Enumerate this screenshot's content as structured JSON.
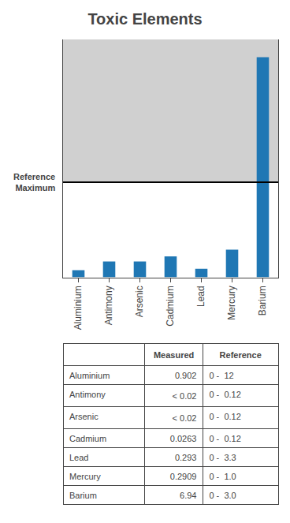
{
  "chart_data": {
    "type": "bar",
    "title": "Toxic Elements",
    "categories": [
      "Aluminium",
      "Antimony",
      "Arsenic",
      "Cadmium",
      "Lead",
      "Mercury",
      "Barium"
    ],
    "values": [
      0.07516666666666667,
      0.16666666666666666,
      0.16666666666666666,
      0.21916666666666668,
      0.08878787878787879,
      0.2909,
      2.3133333333333335
    ],
    "ylim": [
      0,
      2.5
    ],
    "grid": false,
    "tick_labels": "x",
    "reference_line": {
      "y": 1.0,
      "label": "Reference\nMaximum"
    },
    "table": {
      "headers": [
        "Measured",
        "Reference"
      ],
      "rows": [
        [
          "Aluminium",
          "0.902",
          "0 -  12"
        ],
        [
          "Antimony",
          "< 0.02",
          "0 -  0.12"
        ],
        [
          "Arsenic",
          "< 0.02",
          "0 -  0.12"
        ],
        [
          "Cadmium",
          "0.0263",
          "0 -  0.12"
        ],
        [
          "Lead",
          "0.293",
          "0 -  3.3"
        ],
        [
          "Mercury",
          "0.2909",
          "0 -  1.0"
        ],
        [
          "Barium",
          "6.94",
          "0 -  3.0"
        ]
      ]
    }
  }
}
